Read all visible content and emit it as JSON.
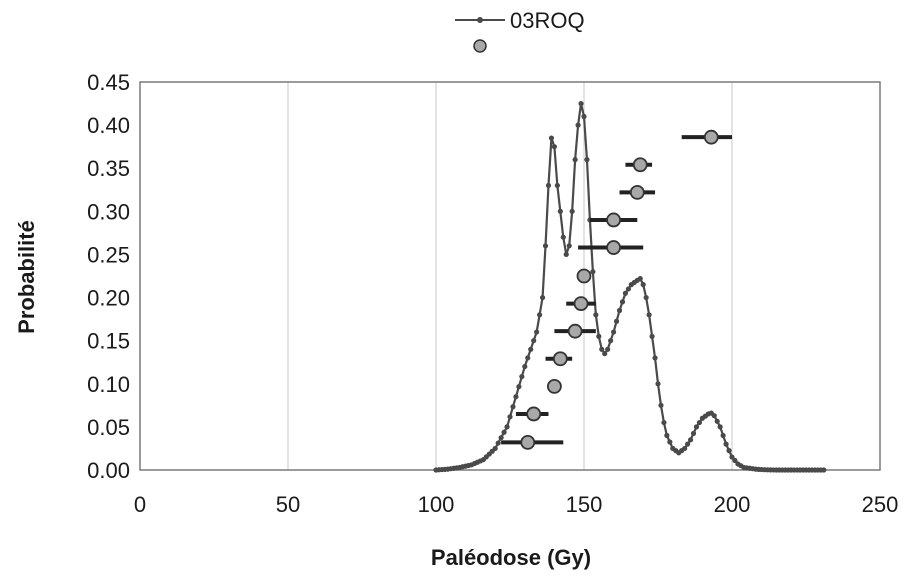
{
  "chart_data": {
    "type": "line",
    "xlabel": "Paléodose (Gy)",
    "ylabel": "Probabilité",
    "xlim": [
      0,
      250
    ],
    "ylim": [
      0,
      0.45
    ],
    "x_ticks": [
      "0",
      "50",
      "100",
      "150",
      "200",
      "250"
    ],
    "y_ticks": [
      "0.00",
      "0.05",
      "0.10",
      "0.15",
      "0.20",
      "0.25",
      "0.30",
      "0.35",
      "0.40",
      "0.45"
    ],
    "grid": "vertical",
    "legend_position": "top",
    "colors": {
      "line": "#4a4a4a",
      "marker_fill": "#a8a8a8",
      "error_bar": "#222222",
      "grid": "#c8c8c8"
    },
    "series": [
      {
        "name": "03ROQ",
        "marker": "small-dot",
        "x": [
          100,
          104,
          108,
          112,
          116,
          120,
          124,
          127,
          130,
          132,
          134,
          136,
          137,
          138,
          139,
          140,
          141,
          142,
          143,
          144,
          145,
          146,
          147,
          148,
          149,
          150,
          151,
          152,
          153,
          154,
          155,
          156,
          157,
          158,
          160,
          162,
          164,
          166,
          168,
          169,
          170,
          171,
          172,
          173,
          174,
          175,
          176,
          177,
          178,
          180,
          182,
          184,
          186,
          188,
          190,
          192,
          193,
          194,
          196,
          198,
          200,
          202,
          204,
          206,
          208,
          210,
          212,
          215,
          220,
          225,
          231
        ],
        "y": [
          0.0,
          0.001,
          0.003,
          0.006,
          0.012,
          0.025,
          0.05,
          0.085,
          0.12,
          0.14,
          0.16,
          0.2,
          0.26,
          0.33,
          0.385,
          0.375,
          0.33,
          0.3,
          0.27,
          0.25,
          0.26,
          0.3,
          0.36,
          0.4,
          0.425,
          0.41,
          0.36,
          0.29,
          0.23,
          0.18,
          0.155,
          0.14,
          0.135,
          0.14,
          0.16,
          0.185,
          0.205,
          0.215,
          0.22,
          0.222,
          0.215,
          0.2,
          0.18,
          0.155,
          0.13,
          0.1,
          0.075,
          0.055,
          0.04,
          0.025,
          0.02,
          0.025,
          0.035,
          0.05,
          0.06,
          0.065,
          0.066,
          0.063,
          0.05,
          0.03,
          0.015,
          0.007,
          0.003,
          0.002,
          0.001,
          0.0005,
          0.0002,
          0.0,
          0.0,
          0.0,
          0.0
        ]
      },
      {
        "name": "",
        "marker": "circle-with-error-bar",
        "points": [
          {
            "x": 131,
            "y": 0.032,
            "xerr_low": 122,
            "xerr_high": 143
          },
          {
            "x": 133,
            "y": 0.065,
            "xerr_low": 127,
            "xerr_high": 138
          },
          {
            "x": 140,
            "y": 0.097,
            "xerr_low": 140,
            "xerr_high": 140
          },
          {
            "x": 142,
            "y": 0.129,
            "xerr_low": 137,
            "xerr_high": 146
          },
          {
            "x": 147,
            "y": 0.161,
            "xerr_low": 140,
            "xerr_high": 154
          },
          {
            "x": 149,
            "y": 0.193,
            "xerr_low": 144,
            "xerr_high": 154
          },
          {
            "x": 150,
            "y": 0.225,
            "xerr_low": 150,
            "xerr_high": 150
          },
          {
            "x": 160,
            "y": 0.258,
            "xerr_low": 148,
            "xerr_high": 170
          },
          {
            "x": 160,
            "y": 0.29,
            "xerr_low": 152,
            "xerr_high": 168
          },
          {
            "x": 168,
            "y": 0.322,
            "xerr_low": 162,
            "xerr_high": 174
          },
          {
            "x": 169,
            "y": 0.354,
            "xerr_low": 164,
            "xerr_high": 173
          },
          {
            "x": 193,
            "y": 0.386,
            "xerr_low": 183,
            "xerr_high": 200
          }
        ]
      }
    ]
  }
}
